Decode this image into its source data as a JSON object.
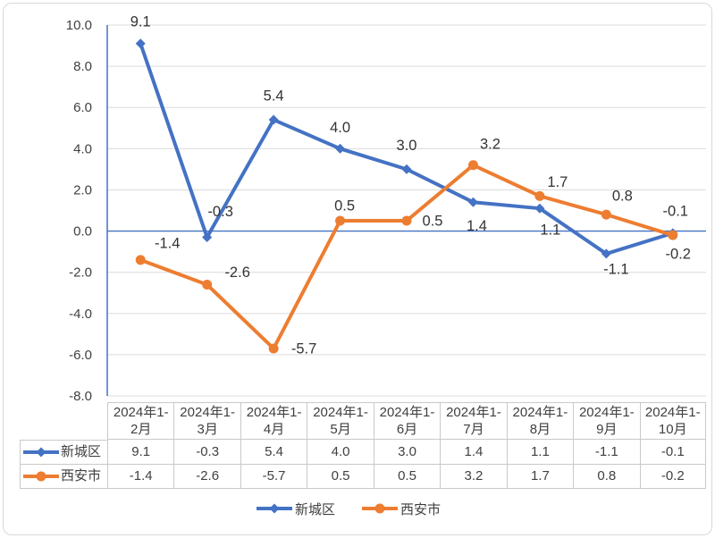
{
  "chart_data": {
    "type": "line",
    "title": "",
    "categories": [
      "2024年1-2月",
      "2024年1-3月",
      "2024年1-4月",
      "2024年1-5月",
      "2024年1-6月",
      "2024年1-7月",
      "2024年1-8月",
      "2024年1-9月",
      "2024年1-10月"
    ],
    "series": [
      {
        "name": "新城区",
        "marker": "diamond",
        "color": "#4472C4",
        "values": [
          9.1,
          -0.3,
          5.4,
          4.0,
          3.0,
          1.4,
          1.1,
          -1.1,
          -0.1
        ]
      },
      {
        "name": "西安市",
        "marker": "circle",
        "color": "#ED7D31",
        "values": [
          -1.4,
          -2.6,
          -5.7,
          0.5,
          0.5,
          3.2,
          1.7,
          0.8,
          -0.2
        ]
      }
    ],
    "y_axis": {
      "min": -8,
      "max": 10,
      "step": 2,
      "decimals": 1,
      "tick_labels": [
        "10.0",
        "8.0",
        "6.0",
        "4.0",
        "2.0",
        "0.0",
        "-2.0",
        "-4.0",
        "-6.0",
        "-8.0"
      ]
    },
    "grid": true,
    "data_labels": true,
    "legend_position": "bottom",
    "data_table_visible": true,
    "label_offsets": [
      [
        [
          0,
          -25
        ],
        [
          15,
          -29
        ],
        [
          0,
          -27
        ],
        [
          0,
          -24
        ],
        [
          0,
          -27
        ],
        [
          4,
          26
        ],
        [
          12,
          24
        ],
        [
          11,
          17
        ],
        [
          3,
          -25
        ]
      ],
      [
        [
          30,
          -19
        ],
        [
          34,
          -14
        ],
        [
          34,
          0
        ],
        [
          5,
          -17
        ],
        [
          29,
          0
        ],
        [
          19,
          -24
        ],
        [
          20,
          -16
        ],
        [
          18,
          -21
        ],
        [
          6,
          21
        ]
      ]
    ],
    "colors": {
      "axis_line": "#4472C4",
      "zero_line": "#4472C4",
      "gridline": "#dcdcdc",
      "table_border": "#c9c9c9",
      "tick_text": "#404040",
      "label_text": "#333333",
      "table_text": "#404040",
      "frame_border": "#d9d9d9"
    }
  }
}
